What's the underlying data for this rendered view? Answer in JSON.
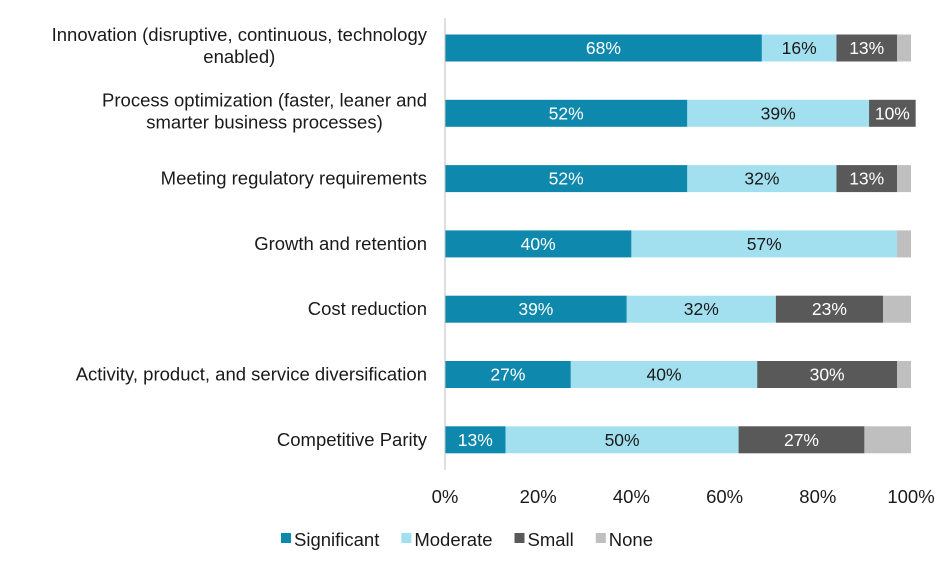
{
  "chart_data": {
    "type": "bar",
    "orientation": "horizontal",
    "stacked": true,
    "categories": [
      [
        "Innovation (disruptive, continuous, technology",
        "enabled)"
      ],
      [
        "Process optimization (faster, leaner and",
        "smarter business processes)"
      ],
      [
        "Meeting regulatory requirements"
      ],
      [
        "Growth and retention"
      ],
      [
        "Cost reduction"
      ],
      [
        "Activity, product, and service diversification"
      ],
      [
        "Competitive Parity"
      ]
    ],
    "series": [
      {
        "name": "Significant",
        "color": "#0e88ac",
        "label_color": "#ffffff",
        "values": [
          68,
          52,
          52,
          40,
          39,
          27,
          13
        ],
        "labels": [
          "68%",
          "52%",
          "52%",
          "40%",
          "39%",
          "27%",
          "13%"
        ]
      },
      {
        "name": "Moderate",
        "color": "#a3e0ef",
        "label_color": "#1a1a1a",
        "values": [
          16,
          39,
          32,
          57,
          32,
          40,
          50
        ],
        "labels": [
          "16%",
          "39%",
          "32%",
          "57%",
          "32%",
          "40%",
          "50%"
        ]
      },
      {
        "name": "Small",
        "color": "#595959",
        "label_color": "#ffffff",
        "values": [
          13,
          10,
          13,
          0,
          23,
          30,
          27
        ],
        "labels": [
          "13%",
          "10%",
          "13%",
          "",
          "23%",
          "30%",
          "27%"
        ]
      },
      {
        "name": "None",
        "color": "#bfbfbf",
        "label_color": "#1a1a1a",
        "values": [
          3,
          0,
          3,
          3,
          6,
          3,
          10
        ],
        "labels": [
          "",
          "",
          "",
          "",
          "",
          "",
          ""
        ]
      }
    ],
    "xlim": [
      0,
      100
    ],
    "x_ticks": [
      "0%",
      "20%",
      "40%",
      "60%",
      "80%",
      "100%"
    ],
    "grid": false,
    "legend_position": "bottom"
  }
}
